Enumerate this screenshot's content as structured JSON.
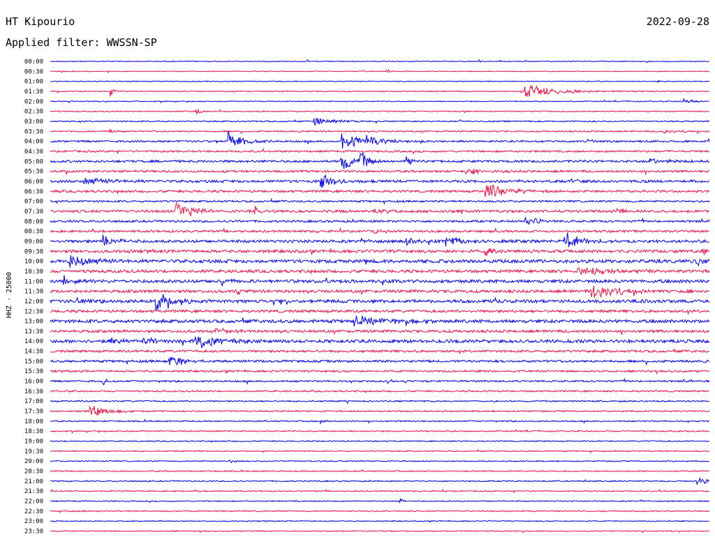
{
  "header": {
    "station": "HT Kipourio",
    "date": "2022-09-28",
    "filter": "Applied filter: WWSSN-SP"
  },
  "chart_data": {
    "type": "line",
    "title": "HT Kipourio",
    "ylabel": "HHZ - 25000",
    "row_labels": [
      "00:00",
      "00:30",
      "01:00",
      "01:30",
      "02:00",
      "02:30",
      "03:00",
      "03:30",
      "04:00",
      "04:30",
      "05:00",
      "05:30",
      "06:00",
      "06:30",
      "07:00",
      "07:30",
      "08:00",
      "08:30",
      "09:00",
      "09:30",
      "10:00",
      "10:30",
      "11:00",
      "11:30",
      "12:00",
      "12:30",
      "13:00",
      "13:30",
      "14:00",
      "14:30",
      "15:00",
      "15:30",
      "16:00",
      "16:30",
      "17:00",
      "17:30",
      "18:00",
      "18:30",
      "19:00",
      "19:30",
      "20:00",
      "20:30",
      "21:00",
      "21:30",
      "22:00",
      "22:30",
      "23:00",
      "23:30"
    ],
    "colors": [
      "#0000ee",
      "#ee1144"
    ],
    "noise_levels": [
      0.6,
      0.6,
      0.6,
      0.7,
      0.7,
      0.8,
      0.9,
      1.0,
      1.3,
      1.3,
      1.6,
      1.5,
      1.8,
      1.6,
      1.3,
      1.8,
      1.5,
      1.5,
      2.0,
      2.0,
      2.3,
      2.0,
      2.2,
      2.0,
      2.2,
      1.8,
      2.2,
      1.8,
      2.2,
      1.6,
      1.6,
      1.3,
      1.2,
      1.1,
      1.0,
      1.0,
      0.9,
      0.9,
      0.8,
      0.8,
      0.8,
      0.8,
      0.9,
      0.8,
      0.8,
      0.8,
      0.7,
      0.7
    ],
    "events": [
      {
        "row": 0,
        "t": 0.39,
        "amp": 3,
        "dur": 0.004
      },
      {
        "row": 0,
        "t": 0.65,
        "amp": 3,
        "dur": 0.004
      },
      {
        "row": 1,
        "t": 0.08,
        "amp": 2,
        "dur": 0.004
      },
      {
        "row": 1,
        "t": 0.51,
        "amp": 2,
        "dur": 0.006
      },
      {
        "row": 2,
        "t": 0.92,
        "amp": 4,
        "dur": 0.006
      },
      {
        "row": 3,
        "t": 0.09,
        "amp": 9,
        "dur": 0.006
      },
      {
        "row": 3,
        "t": 0.72,
        "amp": 10,
        "dur": 0.05
      },
      {
        "row": 3,
        "t": 0.86,
        "amp": 3,
        "dur": 0.005
      },
      {
        "row": 4,
        "t": 0.96,
        "amp": 5,
        "dur": 0.015
      },
      {
        "row": 5,
        "t": 0.22,
        "amp": 7,
        "dur": 0.006
      },
      {
        "row": 6,
        "t": 0.4,
        "amp": 6,
        "dur": 0.03
      },
      {
        "row": 7,
        "t": 0.09,
        "amp": 3,
        "dur": 0.01
      },
      {
        "row": 7,
        "t": 0.93,
        "amp": 3,
        "dur": 0.02
      },
      {
        "row": 8,
        "t": 0.27,
        "amp": 14,
        "dur": 0.02
      },
      {
        "row": 8,
        "t": 0.44,
        "amp": 14,
        "dur": 0.03
      },
      {
        "row": 8,
        "t": 0.48,
        "amp": 9,
        "dur": 0.02
      },
      {
        "row": 10,
        "t": 0.44,
        "amp": 14,
        "dur": 0.02
      },
      {
        "row": 10,
        "t": 0.47,
        "amp": 14,
        "dur": 0.015
      },
      {
        "row": 10,
        "t": 0.54,
        "amp": 8,
        "dur": 0.01
      },
      {
        "row": 10,
        "t": 0.91,
        "amp": 4,
        "dur": 0.03
      },
      {
        "row": 11,
        "t": 0.63,
        "amp": 5,
        "dur": 0.03
      },
      {
        "row": 12,
        "t": 0.05,
        "amp": 6,
        "dur": 0.04
      },
      {
        "row": 12,
        "t": 0.41,
        "amp": 11,
        "dur": 0.02
      },
      {
        "row": 13,
        "t": 0.66,
        "amp": 13,
        "dur": 0.03
      },
      {
        "row": 15,
        "t": 0.19,
        "amp": 12,
        "dur": 0.03
      },
      {
        "row": 15,
        "t": 0.31,
        "amp": 9,
        "dur": 0.004
      },
      {
        "row": 15,
        "t": 0.49,
        "amp": 5,
        "dur": 0.02
      },
      {
        "row": 15,
        "t": 0.86,
        "amp": 6,
        "dur": 0.01
      },
      {
        "row": 16,
        "t": 0.72,
        "amp": 7,
        "dur": 0.02
      },
      {
        "row": 17,
        "t": 0.49,
        "amp": 6,
        "dur": 0.006
      },
      {
        "row": 18,
        "t": 0.08,
        "amp": 10,
        "dur": 0.02
      },
      {
        "row": 18,
        "t": 0.54,
        "amp": 9,
        "dur": 0.01
      },
      {
        "row": 18,
        "t": 0.6,
        "amp": 9,
        "dur": 0.02
      },
      {
        "row": 18,
        "t": 0.78,
        "amp": 16,
        "dur": 0.02
      },
      {
        "row": 19,
        "t": 0.66,
        "amp": 7,
        "dur": 0.01
      },
      {
        "row": 19,
        "t": 0.99,
        "amp": 6,
        "dur": 0.01
      },
      {
        "row": 20,
        "t": 0.03,
        "amp": 9,
        "dur": 0.04
      },
      {
        "row": 20,
        "t": 0.98,
        "amp": 7,
        "dur": 0.02
      },
      {
        "row": 21,
        "t": 0.8,
        "amp": 5,
        "dur": 0.06
      },
      {
        "row": 22,
        "t": 0.02,
        "amp": 8,
        "dur": 0.02
      },
      {
        "row": 22,
        "t": 0.26,
        "amp": 9,
        "dur": 0.01
      },
      {
        "row": 23,
        "t": 0.28,
        "amp": 6,
        "dur": 0.01
      },
      {
        "row": 23,
        "t": 0.82,
        "amp": 11,
        "dur": 0.04
      },
      {
        "row": 24,
        "t": 0.16,
        "amp": 13,
        "dur": 0.03
      },
      {
        "row": 24,
        "t": 0.04,
        "amp": 6,
        "dur": 0.01
      },
      {
        "row": 26,
        "t": 0.46,
        "amp": 10,
        "dur": 0.04
      },
      {
        "row": 26,
        "t": 0.54,
        "amp": 6,
        "dur": 0.02
      },
      {
        "row": 27,
        "t": 0.25,
        "amp": 5,
        "dur": 0.02
      },
      {
        "row": 28,
        "t": 0.22,
        "amp": 12,
        "dur": 0.03
      },
      {
        "row": 28,
        "t": 0.09,
        "amp": 8,
        "dur": 0.01
      },
      {
        "row": 28,
        "t": 0.14,
        "amp": 6,
        "dur": 0.02
      },
      {
        "row": 30,
        "t": 0.18,
        "amp": 10,
        "dur": 0.02
      },
      {
        "row": 32,
        "t": 0.08,
        "amp": 6,
        "dur": 0.006
      },
      {
        "row": 34,
        "t": 0.45,
        "amp": 4,
        "dur": 0.005
      },
      {
        "row": 35,
        "t": 0.06,
        "amp": 8,
        "dur": 0.03
      },
      {
        "row": 36,
        "t": 0.41,
        "amp": 5,
        "dur": 0.006
      },
      {
        "row": 40,
        "t": 0.27,
        "amp": 4,
        "dur": 0.01
      },
      {
        "row": 42,
        "t": 0.98,
        "amp": 6,
        "dur": 0.02
      },
      {
        "row": 44,
        "t": 0.53,
        "amp": 4,
        "dur": 0.006
      }
    ]
  }
}
